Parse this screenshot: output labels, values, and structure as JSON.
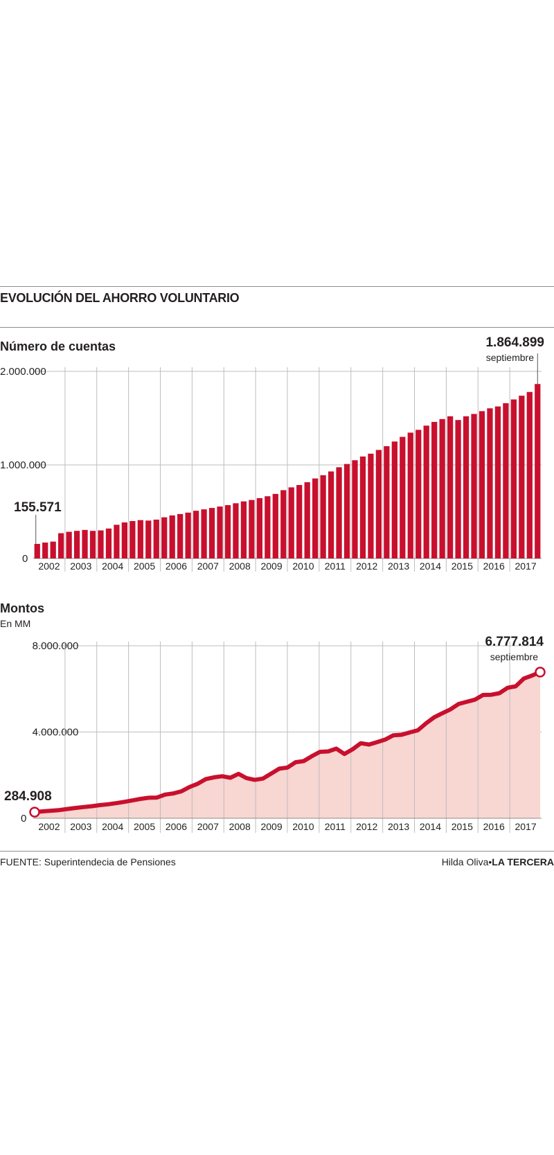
{
  "header": {
    "title": "EVOLUCIÓN DEL AHORRO VOLUNTARIO"
  },
  "footer": {
    "source": "FUENTE: Superintendecia de Pensiones",
    "author": "Hilda Oliva",
    "separator": "•",
    "publisher": "LA TERCERA"
  },
  "colors": {
    "bar": "#c8102e",
    "line": "#c8102e",
    "area": "#f8d6d1",
    "grid": "#bdbdbd",
    "text": "#231f20"
  },
  "chart_data": [
    {
      "type": "bar",
      "title": "Número de cuentas",
      "x_labels": [
        "2002",
        "2003",
        "2004",
        "2005",
        "2006",
        "2007",
        "2008",
        "2009",
        "2010",
        "2011",
        "2012",
        "2013",
        "2014",
        "2015",
        "2016",
        "2017"
      ],
      "y_ticks": [
        "2.000.000",
        "1.000.000",
        "0"
      ],
      "y_tick_values": [
        2000000,
        1000000,
        0
      ],
      "ylim": [
        0,
        2000000
      ],
      "values": [
        155571,
        170000,
        180000,
        270000,
        285000,
        295000,
        305000,
        295000,
        300000,
        320000,
        360000,
        385000,
        400000,
        410000,
        405000,
        415000,
        440000,
        460000,
        475000,
        490000,
        510000,
        525000,
        540000,
        555000,
        570000,
        590000,
        610000,
        625000,
        645000,
        665000,
        690000,
        730000,
        760000,
        785000,
        815000,
        855000,
        890000,
        930000,
        975000,
        1010000,
        1050000,
        1090000,
        1120000,
        1160000,
        1200000,
        1250000,
        1300000,
        1345000,
        1375000,
        1420000,
        1460000,
        1490000,
        1520000,
        1480000,
        1520000,
        1545000,
        1575000,
        1605000,
        1625000,
        1660000,
        1700000,
        1740000,
        1780000,
        1864899
      ],
      "annotations": [
        {
          "label": "155.571",
          "sublabel": ""
        },
        {
          "label": "1.864.899",
          "sublabel": "septiembre"
        }
      ]
    },
    {
      "type": "area",
      "title": "Montos",
      "subtitle": "En MM",
      "x_labels": [
        "2002",
        "2003",
        "2004",
        "2005",
        "2006",
        "2007",
        "2008",
        "2009",
        "2010",
        "2011",
        "2012",
        "2013",
        "2014",
        "2015",
        "2016",
        "2017"
      ],
      "y_ticks": [
        "8.000.000",
        "4.000.000",
        "0"
      ],
      "y_tick_values": [
        8000000,
        4000000,
        0
      ],
      "ylim": [
        0,
        8000000
      ],
      "values": [
        284908,
        320000,
        350000,
        380000,
        430000,
        480000,
        520000,
        560000,
        610000,
        650000,
        700000,
        760000,
        830000,
        900000,
        950000,
        960000,
        1100000,
        1150000,
        1250000,
        1450000,
        1600000,
        1820000,
        1900000,
        1950000,
        1880000,
        2060000,
        1860000,
        1780000,
        1840000,
        2070000,
        2300000,
        2350000,
        2600000,
        2650000,
        2880000,
        3080000,
        3100000,
        3230000,
        2980000,
        3200000,
        3480000,
        3420000,
        3530000,
        3650000,
        3850000,
        3870000,
        3980000,
        4080000,
        4400000,
        4680000,
        4870000,
        5050000,
        5300000,
        5400000,
        5500000,
        5720000,
        5730000,
        5800000,
        6050000,
        6120000,
        6480000,
        6620000,
        6777814
      ],
      "annotations": [
        {
          "label": "284.908",
          "sublabel": ""
        },
        {
          "label": "6.777.814",
          "sublabel": "septiembre"
        }
      ]
    }
  ]
}
